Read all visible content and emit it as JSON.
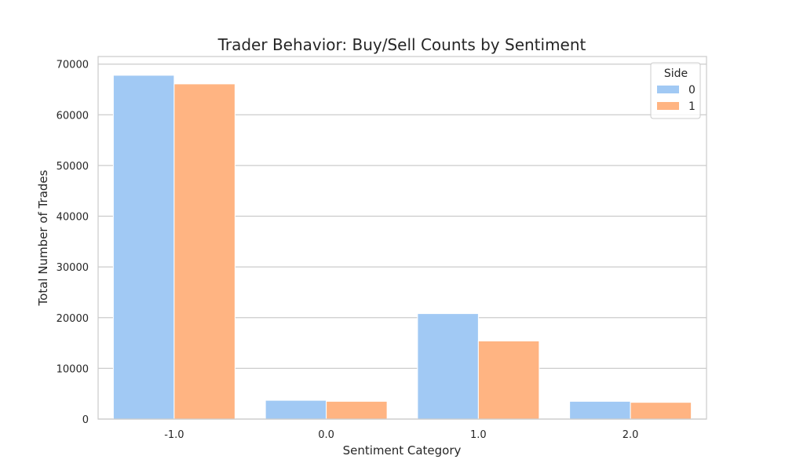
{
  "chart_data": {
    "type": "bar",
    "title": "Trader Behavior: Buy/Sell Counts by Sentiment",
    "xlabel": "Sentiment Category",
    "ylabel": "Total Number of Trades",
    "categories": [
      "-1.0",
      "0.0",
      "1.0",
      "2.0"
    ],
    "series": [
      {
        "name": "0",
        "values": [
          67800,
          3700,
          20800,
          3500
        ],
        "color": "#a1c9f4"
      },
      {
        "name": "1",
        "values": [
          66100,
          3500,
          15400,
          3300
        ],
        "color": "#ffb482"
      }
    ],
    "ylim": [
      0,
      71500
    ],
    "yticks": [
      0,
      10000,
      20000,
      30000,
      40000,
      50000,
      60000,
      70000
    ],
    "grid": "horizontal",
    "legend": {
      "title": "Side",
      "placement": "top-right"
    }
  }
}
